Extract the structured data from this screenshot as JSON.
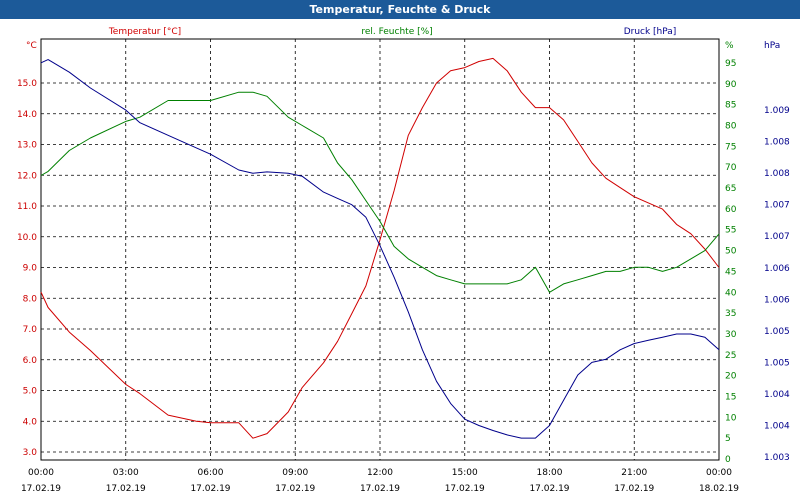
{
  "window": {
    "title": "Temperatur, Feuchte & Druck"
  },
  "chart_data": {
    "type": "line",
    "title": "Temperatur, Feuchte & Druck",
    "x_tick_labels": [
      [
        "00:00",
        "17.02.19"
      ],
      [
        "03:00",
        "17.02.19"
      ],
      [
        "06:00",
        "17.02.19"
      ],
      [
        "09:00",
        "17.02.19"
      ],
      [
        "12:00",
        "17.02.19"
      ],
      [
        "15:00",
        "17.02.19"
      ],
      [
        "18:00",
        "17.02.19"
      ],
      [
        "21:00",
        "17.02.19"
      ],
      [
        "00:00",
        "18.02.19"
      ]
    ],
    "x_hours": [
      0,
      0.25,
      1,
      1.75,
      3,
      3.5,
      4.5,
      5.5,
      6,
      7,
      7.5,
      8,
      8.75,
      9.25,
      10,
      10.5,
      11,
      11.5,
      12,
      12.5,
      13,
      13.5,
      14,
      14.5,
      15,
      15.5,
      16,
      16.5,
      17,
      17.5,
      18,
      18.5,
      19,
      19.5,
      20,
      20.5,
      21,
      21.5,
      22,
      22.5,
      23,
      23.5,
      24
    ],
    "series": [
      {
        "name": "Temperatur [°C]",
        "axis": "left",
        "unit": "°C",
        "color": "#d00000",
        "values": [
          8.2,
          7.7,
          6.9,
          6.3,
          5.2,
          4.9,
          4.2,
          4.0,
          3.95,
          3.95,
          3.45,
          3.6,
          4.3,
          5.1,
          5.9,
          6.6,
          7.5,
          8.4,
          9.9,
          11.5,
          13.3,
          14.2,
          15.0,
          15.4,
          15.5,
          15.7,
          15.8,
          15.4,
          14.7,
          14.2,
          14.2,
          13.8,
          13.1,
          12.4,
          11.9,
          11.6,
          11.3,
          11.1,
          10.9,
          10.4,
          10.1,
          9.6,
          9.0
        ]
      },
      {
        "name": "rel. Feuchte [%]",
        "axis": "right",
        "unit": "%",
        "color": "#008000",
        "values": [
          68,
          69,
          74,
          77,
          81,
          82,
          86,
          86,
          86,
          88,
          88,
          87,
          82,
          80,
          77,
          71,
          67,
          62,
          57,
          51,
          48,
          46,
          44,
          43,
          42,
          42,
          42,
          42,
          43,
          46,
          40,
          42,
          43,
          44,
          45,
          45,
          46,
          46,
          45,
          46,
          48,
          50,
          54
        ]
      },
      {
        "name": "Druck [hPa]",
        "axis": "right2",
        "unit": "hPa",
        "color": "#00008b",
        "values": [
          1009.25,
          1009.3,
          1009.1,
          1008.85,
          1008.5,
          1008.3,
          1008.1,
          1007.9,
          1007.8,
          1007.55,
          1007.5,
          1007.52,
          1007.5,
          1007.45,
          1007.2,
          1007.1,
          1007.0,
          1006.8,
          1006.35,
          1005.85,
          1005.3,
          1004.7,
          1004.2,
          1003.85,
          1003.6,
          1003.5,
          1003.42,
          1003.35,
          1003.3,
          1003.3,
          1003.5,
          1003.9,
          1004.3,
          1004.5,
          1004.55,
          1004.7,
          1004.8,
          1004.85,
          1004.9,
          1004.95,
          1004.95,
          1004.9,
          1004.7
        ]
      }
    ],
    "axes": {
      "left": {
        "label": "°C",
        "min": 3.0,
        "max": 15.0,
        "ticks": [
          "3.0",
          "4.0",
          "5.0",
          "6.0",
          "7.0",
          "8.0",
          "9.0",
          "10.0",
          "11.0",
          "12.0",
          "13.0",
          "14.0",
          "15.0"
        ]
      },
      "right": {
        "label": "%",
        "min": 0,
        "max": 95,
        "ticks": [
          "0",
          "5",
          "10",
          "15",
          "20",
          "25",
          "30",
          "35",
          "40",
          "45",
          "50",
          "55",
          "60",
          "65",
          "70",
          "75",
          "80",
          "85",
          "90",
          "95"
        ]
      },
      "right2": {
        "label": "hPa",
        "min": 1003.0,
        "max": 1009.5,
        "ticks": [
          "1.003",
          "1.004",
          "1.004",
          "1.005",
          "1.005",
          "1.006",
          "1.006",
          "1.007",
          "1.007",
          "1.008",
          "1.008",
          "1.009"
        ]
      }
    },
    "grid": true,
    "xlim": [
      0,
      24
    ]
  }
}
